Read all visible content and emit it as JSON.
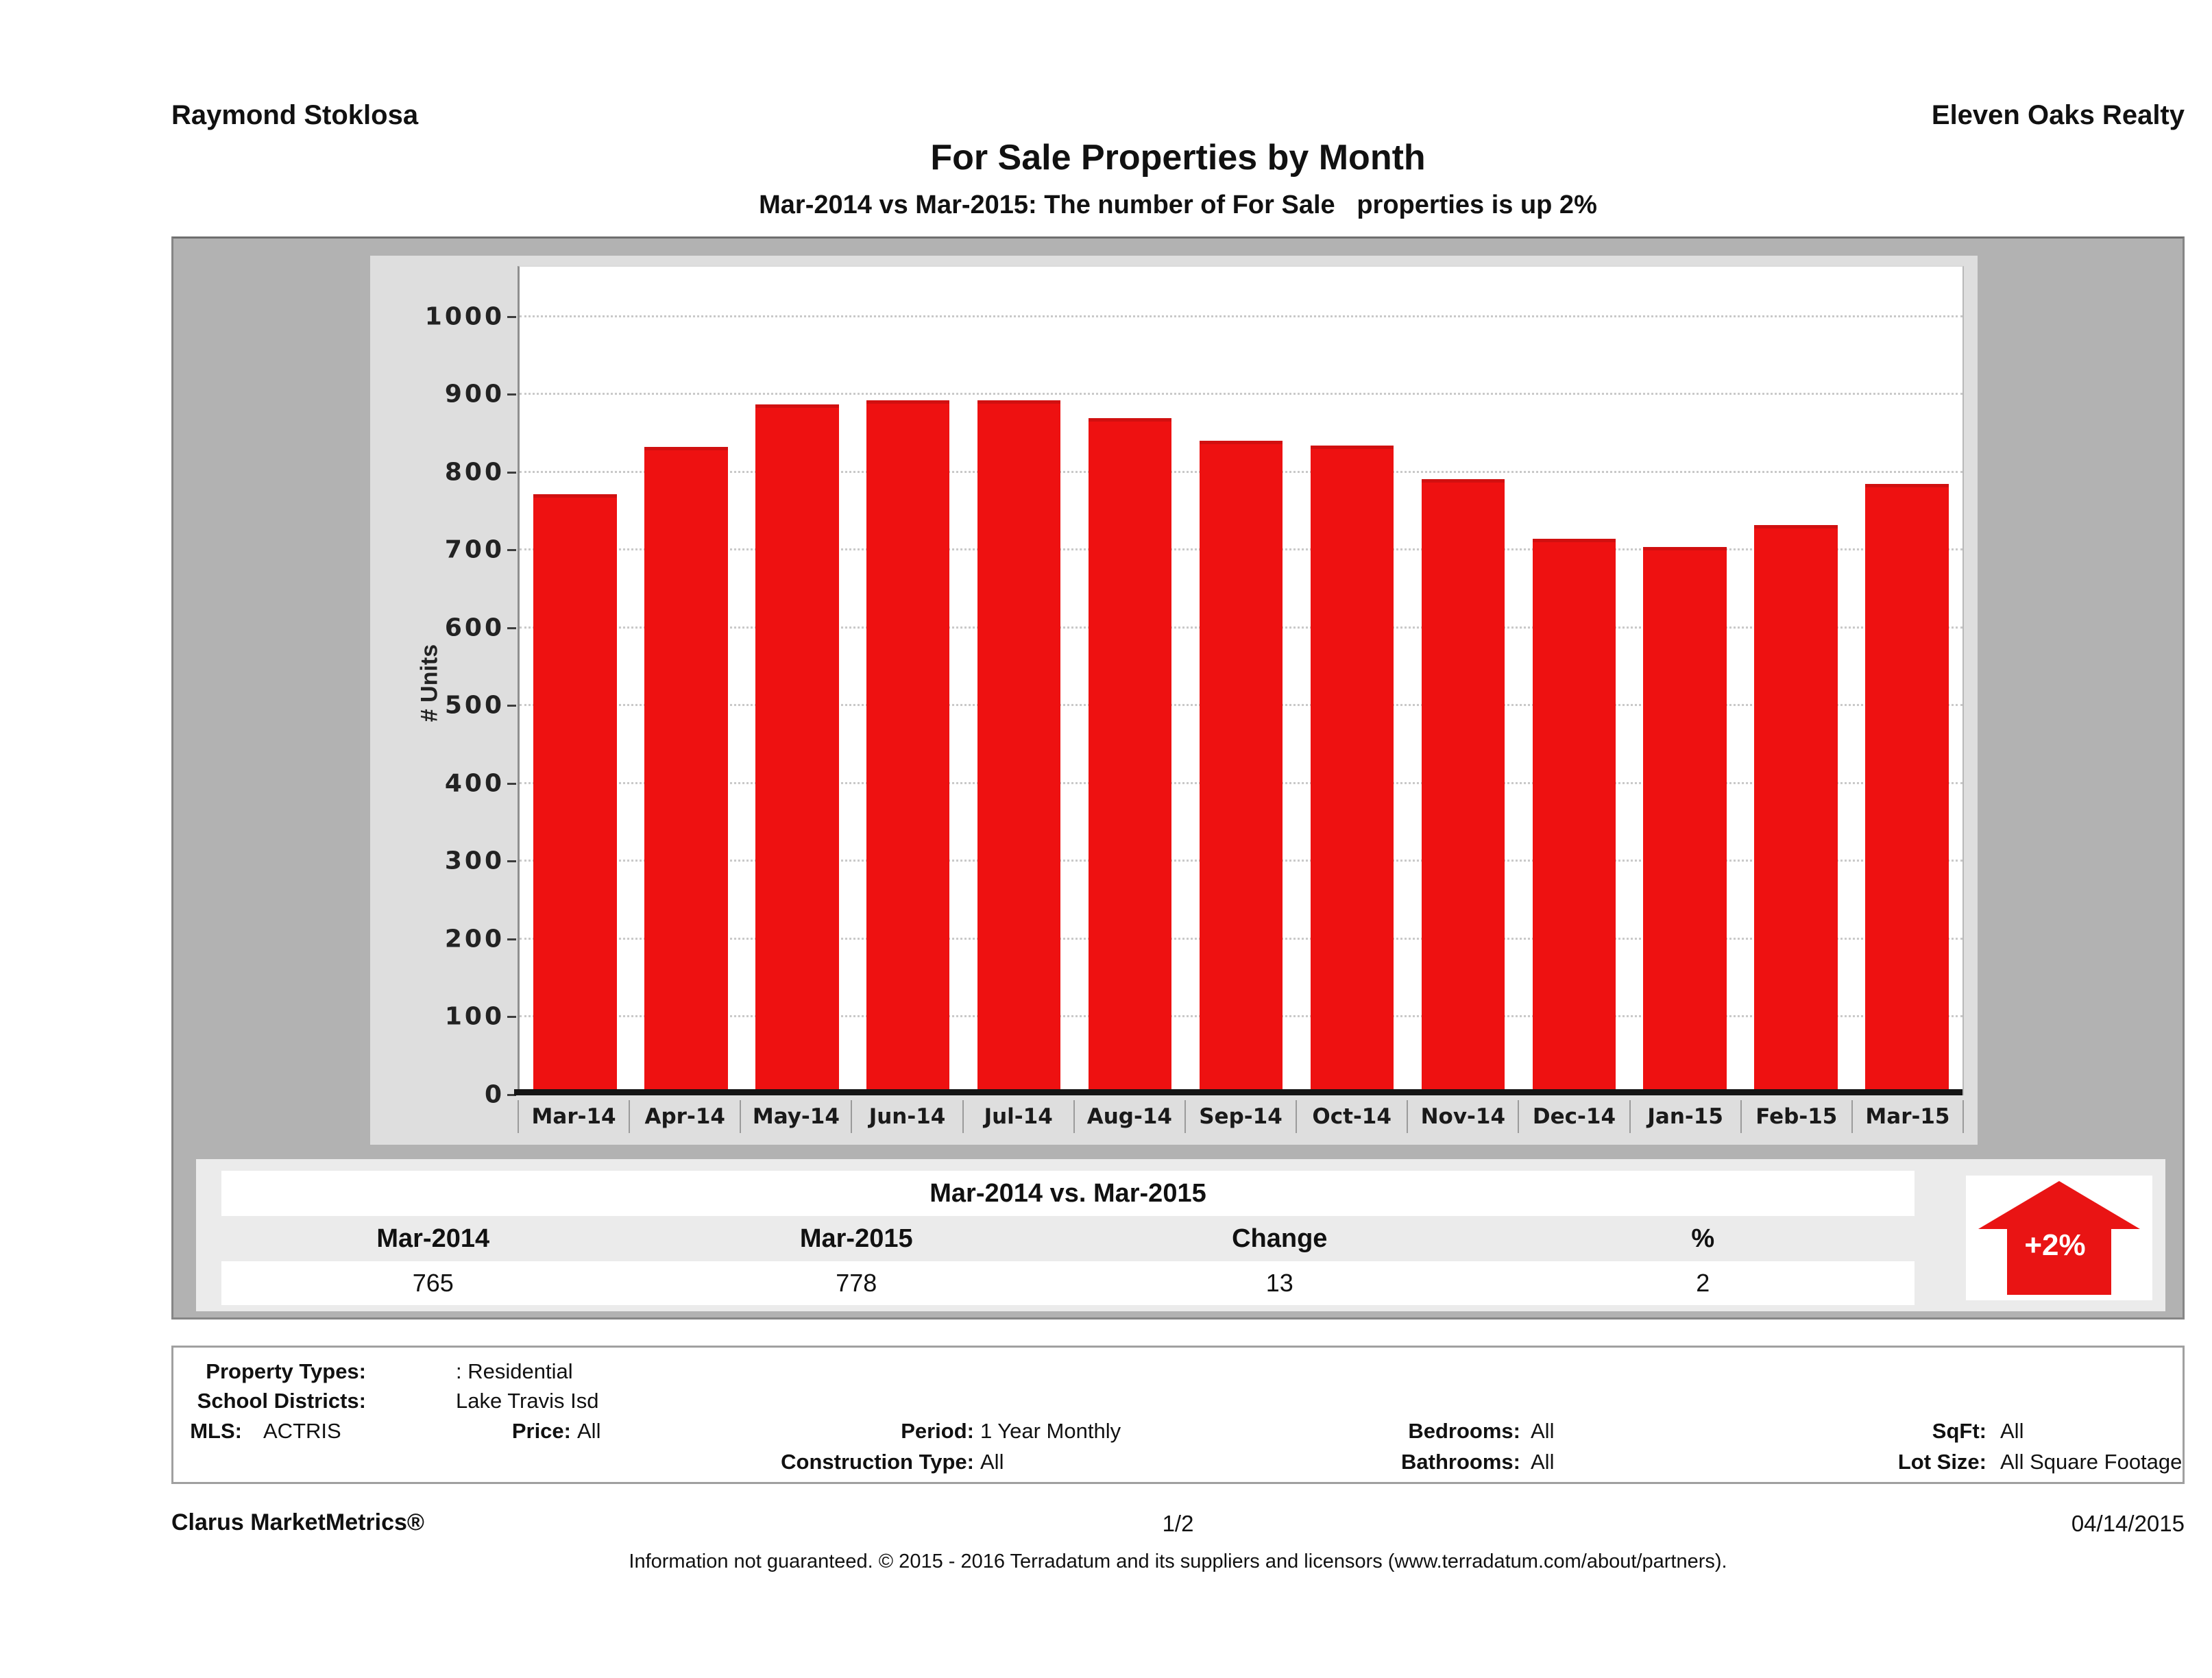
{
  "header": {
    "agent": "Raymond Stoklosa",
    "brokerage": "Eleven Oaks Realty",
    "title": "For Sale Properties by Month",
    "subtitle": "Mar-2014 vs Mar-2015: The number of For Sale   properties is up 2%"
  },
  "chart_data": {
    "type": "bar",
    "title": "For Sale Properties by Month",
    "categories": [
      "Mar-14",
      "Apr-14",
      "May-14",
      "Jun-14",
      "Jul-14",
      "Aug-14",
      "Sep-14",
      "Oct-14",
      "Nov-14",
      "Dec-14",
      "Jan-15",
      "Feb-15",
      "Mar-15"
    ],
    "values": [
      765,
      825,
      880,
      885,
      885,
      862,
      833,
      827,
      784,
      707,
      697,
      725,
      778
    ],
    "xlabel": "",
    "ylabel": "# Units",
    "ylim": [
      0,
      1000
    ],
    "ytick_step": 100,
    "axis_headroom_max": 1065,
    "grid": "dotted horizontal",
    "legend": "none",
    "bar_color": "#ee1111"
  },
  "summary": {
    "title": "Mar-2014 vs. Mar-2015",
    "columns": [
      "Mar-2014",
      "Mar-2015",
      "Change",
      "%"
    ],
    "values": [
      "765",
      "778",
      "13",
      "2"
    ],
    "badge": "+2%",
    "badge_color": "#e91414"
  },
  "details": {
    "property_types": {
      "label": "Property Types:",
      "value": ": Residential"
    },
    "school_districts": {
      "label": "School Districts:",
      "value": "Lake Travis Isd"
    },
    "mls": {
      "label": "MLS:",
      "value": "ACTRIS"
    },
    "price": {
      "label": "Price:",
      "value": "All"
    },
    "period": {
      "label": "Period:",
      "value": "1 Year Monthly"
    },
    "bedrooms": {
      "label": "Bedrooms:",
      "value": "All"
    },
    "sqft": {
      "label": "SqFt:",
      "value": "All"
    },
    "construction_type": {
      "label": "Construction Type:",
      "value": "All"
    },
    "bathrooms": {
      "label": "Bathrooms:",
      "value": "All"
    },
    "lot_size": {
      "label": "Lot Size:",
      "value": "All Square Footage"
    }
  },
  "footer": {
    "product": "Clarus MarketMetrics®",
    "page": "1/2",
    "date": "04/14/2015",
    "disclaimer": "Information not guaranteed. © 2015 - 2016 Terradatum and its suppliers and licensors (www.terradatum.com/about/partners)."
  }
}
